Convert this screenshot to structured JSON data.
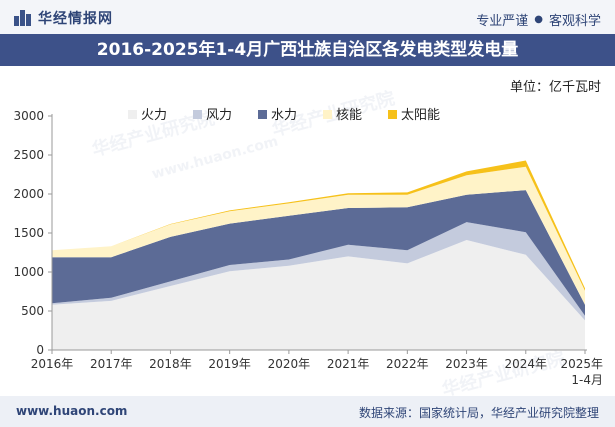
{
  "header": {
    "brand": "华经情报网",
    "slogan_left": "专业严谨",
    "slogan_right": "客观科学"
  },
  "title": "2016-2025年1-4月广西壮族自治区各发电类型发电量",
  "unit": "单位：亿千瓦时",
  "footer": {
    "website": "www.huaon.com",
    "source": "数据来源：国家统计局，华经产业研究院整理"
  },
  "watermarks": [
    "华经产业研究院",
    "www.huaon.com"
  ],
  "colors": {
    "header_band": "#3d5189",
    "thermal": "#efefef",
    "wind": "#c4cbdd",
    "hydro": "#5c6b96",
    "nuclear": "#fff3c8",
    "solar": "#f6c11a"
  },
  "chart_data": {
    "type": "area",
    "stacked": true,
    "categories": [
      "2016年",
      "2017年",
      "2018年",
      "2019年",
      "2020年",
      "2021年",
      "2022年",
      "2023年",
      "2024年",
      "2025年\n1-4月"
    ],
    "ylim": [
      0,
      3000
    ],
    "yticks": [
      0,
      500,
      1000,
      1500,
      2000,
      2500,
      3000
    ],
    "grid": false,
    "legend": "top-left",
    "series": [
      {
        "name": "火力",
        "color": "#efefef",
        "values": [
          580,
          630,
          820,
          1010,
          1080,
          1200,
          1110,
          1410,
          1220,
          380
        ]
      },
      {
        "name": "风力",
        "color": "#c4cbdd",
        "values": [
          20,
          40,
          60,
          80,
          80,
          150,
          170,
          230,
          290,
          60
        ]
      },
      {
        "name": "水力",
        "color": "#5c6b96",
        "values": [
          590,
          520,
          570,
          530,
          560,
          470,
          550,
          350,
          540,
          140
        ]
      },
      {
        "name": "核能",
        "color": "#fff3c8",
        "values": [
          90,
          140,
          160,
          160,
          160,
          170,
          160,
          250,
          300,
          180
        ]
      },
      {
        "name": "太阳能",
        "color": "#f6c11a",
        "values": [
          0,
          0,
          5,
          10,
          15,
          20,
          30,
          50,
          80,
          30
        ]
      }
    ]
  }
}
